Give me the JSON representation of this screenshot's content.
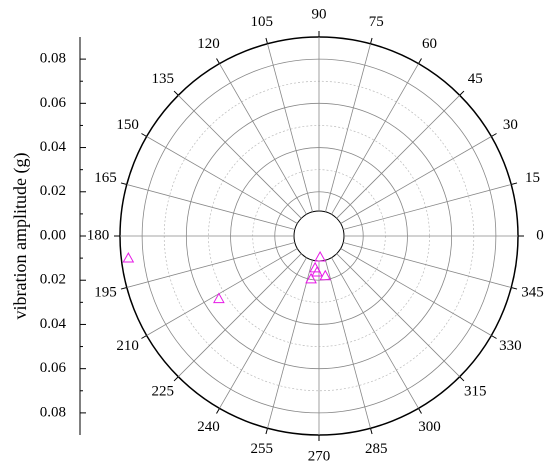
{
  "chart_data": {
    "type": "polar-scatter",
    "theta": [
      186.6,
      212,
      273,
      279,
      267,
      259.5,
      263
    ],
    "r": [
      0.0868,
      0.0534,
      0.0095,
      0.0182,
      0.0163,
      0.0197,
      0.0145
    ],
    "color": "#e619e6",
    "marker": "triangle",
    "rlim": [
      0,
      0.09
    ],
    "rticks": [
      {
        "value": 0,
        "label": "0.00"
      },
      {
        "value": 0.02,
        "label": "0.02"
      },
      {
        "value": 0.04,
        "label": "0.04"
      },
      {
        "value": 0.06,
        "label": "0.06"
      },
      {
        "value": 0.08,
        "label": "0.08"
      }
    ],
    "thetaticks": [
      0,
      15,
      30,
      45,
      60,
      75,
      90,
      105,
      120,
      135,
      150,
      165,
      180,
      195,
      210,
      225,
      240,
      255,
      270,
      285,
      300,
      315,
      330,
      345
    ],
    "ylabel": "vibration amplitude (g)",
    "grid": true
  }
}
